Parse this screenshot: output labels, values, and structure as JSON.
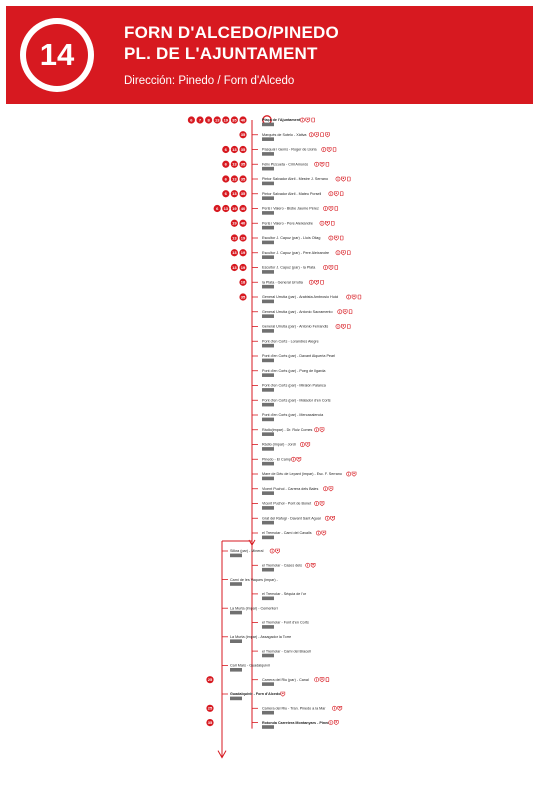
{
  "header": {
    "route_number": "14",
    "title_line1": "FORN D'ALCEDO/PINEDO",
    "title_line2": "PL. DE L'AJUNTAMENT",
    "direction": "Dirección: Pinedo / Forn d'Alcedo"
  },
  "colors": {
    "brand": "#d71920",
    "code_bg": "#707070"
  },
  "main_stops": [
    {
      "name": "Plaça de l'Ajuntament",
      "code": "",
      "bold": true,
      "lines": [
        "6",
        "7",
        "8",
        "13",
        "19",
        "35",
        "40"
      ],
      "icons": [
        "info",
        "metro",
        "bus"
      ]
    },
    {
      "name": "Marquès de Sotelo - Xàtiva",
      "code": "",
      "bold": false,
      "lines": [
        "35"
      ],
      "icons": [
        "info",
        "metro",
        "bus",
        "metro"
      ]
    },
    {
      "name": "Pasqual i Genís - Roger de Llúria",
      "code": "",
      "bold": false,
      "lines": [
        "6",
        "13",
        "35"
      ],
      "icons": [
        "info",
        "metro",
        "bus"
      ]
    },
    {
      "name": "Fèlix Pizcueta - Ciril Amorós",
      "code": "",
      "bold": false,
      "lines": [
        "6",
        "13",
        "35"
      ],
      "icons": [
        "info",
        "metro",
        "bus"
      ]
    },
    {
      "name": "Pintor Salvador Abril - Mestre J. Serrano",
      "code": "",
      "bold": false,
      "lines": [
        "6",
        "13",
        "35"
      ],
      "icons": [
        "info",
        "metro",
        "bus"
      ]
    },
    {
      "name": "Pintor Salvador Abril - Mateu Porsell",
      "code": "",
      "bold": false,
      "lines": [
        "6",
        "13",
        "35"
      ],
      "icons": [
        "info",
        "metro",
        "bus"
      ]
    },
    {
      "name": "Peris i Valero - Bisbe Jaume Pérez",
      "code": "",
      "bold": false,
      "lines": [
        "6",
        "13",
        "19",
        "40"
      ],
      "icons": [
        "info",
        "metro",
        "bus"
      ]
    },
    {
      "name": "Peris i Valero - Pere Aleixandre",
      "code": "",
      "bold": false,
      "lines": [
        "19",
        "40"
      ],
      "icons": [
        "info",
        "metro",
        "bus"
      ]
    },
    {
      "name": "Escultor J. Capuz (par) - Lluís Oliag",
      "code": "",
      "bold": false,
      "lines": [
        "13",
        "19"
      ],
      "icons": [
        "info",
        "metro",
        "bus"
      ]
    },
    {
      "name": "Escultor J. Capuz (par) - Pere Aleixandre",
      "code": "",
      "bold": false,
      "lines": [
        "13",
        "19"
      ],
      "icons": [
        "info",
        "metro",
        "bus"
      ]
    },
    {
      "name": "Escultor J. Capuz (par) - la Plata",
      "code": "",
      "bold": false,
      "lines": [
        "13",
        "19"
      ],
      "icons": [
        "info",
        "metro",
        "bus"
      ]
    },
    {
      "name": "la Plata - General Urrutia",
      "code": "",
      "bold": false,
      "lines": [
        "18"
      ],
      "icons": [
        "info",
        "metro",
        "bus"
      ]
    },
    {
      "name": "General Urrutia (par) - Arabista Ambrosio Huici",
      "code": "",
      "bold": false,
      "lines": [
        "35"
      ],
      "icons": [
        "info",
        "metro",
        "bus"
      ]
    },
    {
      "name": "General Urrutia (par) - Antonio Sacramento",
      "code": "",
      "bold": false,
      "lines": [],
      "icons": [
        "info",
        "metro",
        "bus"
      ]
    },
    {
      "name": "General Urrutia (par) - Antonio Ferrandis",
      "code": "",
      "bold": false,
      "lines": [],
      "icons": [
        "info",
        "metro",
        "bus"
      ]
    },
    {
      "name": "Pont d'en Corts - Lorandres Alegre",
      "code": "",
      "bold": false,
      "lines": [],
      "icons": []
    },
    {
      "name": "Pont d'en Corts (par) - Davant Alqueria Pearl",
      "code": "",
      "bold": false,
      "lines": [],
      "icons": []
    },
    {
      "name": "Pont d'en Corts (par) - Poeg de Ilgarda",
      "code": "",
      "bold": false,
      "lines": [],
      "icons": []
    },
    {
      "name": "Pont d'en Corts (par) - Miralón Palanca",
      "code": "",
      "bold": false,
      "lines": [],
      "icons": []
    },
    {
      "name": "Pont d'en Corts (par) - Matador d'en Corts",
      "code": "",
      "bold": false,
      "lines": [],
      "icons": []
    },
    {
      "name": "Pont d'en Corts (par) - Mercaxalencia",
      "code": "",
      "bold": false,
      "lines": [],
      "icons": []
    },
    {
      "name": "Ràdio(impar) - Dr. Ruiz Comes",
      "code": "",
      "bold": false,
      "lines": [],
      "icons": [
        "info",
        "metro"
      ]
    },
    {
      "name": "Ràdio (impar) - Jordi",
      "code": "",
      "bold": false,
      "lines": [],
      "icons": [
        "info",
        "metro"
      ]
    },
    {
      "name": "Pinedo - El Camp",
      "code": "",
      "bold": false,
      "lines": [],
      "icons": [
        "info",
        "metro"
      ]
    },
    {
      "name": "Mare de Déu de Lepant (impar) - Esc. F. Serrano",
      "code": "",
      "bold": false,
      "lines": [],
      "icons": [
        "info",
        "metro"
      ]
    },
    {
      "name": "Vicent Puchol - Carrera dels Bales",
      "code": "",
      "bold": false,
      "lines": [],
      "icons": [
        "info",
        "metro"
      ]
    },
    {
      "name": "Vicent Puchol - Pont de Bonet",
      "code": "",
      "bold": false,
      "lines": [],
      "icons": [
        "info",
        "metro"
      ]
    },
    {
      "name": "Grat del Rafugi - Davant Sant Aguai",
      "code": "",
      "bold": false,
      "lines": [],
      "icons": [
        "info",
        "metro"
      ]
    },
    {
      "name": "el Tremolar - Camí del Cavalls",
      "code": "",
      "bold": false,
      "lines": [],
      "icons": [
        "info",
        "metro"
      ]
    }
  ],
  "branch_stops": [
    {
      "side": "left",
      "name": "Silkra (par) - Mineral",
      "code": "",
      "bold": false,
      "icons": [
        "info",
        "metro"
      ]
    },
    {
      "side": "right",
      "name": "el Tremolar - Cases dels",
      "code": "",
      "bold": false,
      "icons": [
        "info",
        "metro"
      ]
    },
    {
      "side": "left",
      "name": "Camí de les Vaques (impar) -",
      "code": "",
      "bold": false,
      "icons": []
    },
    {
      "side": "right",
      "name": "el Tremolar - Séquia de l'or",
      "code": "",
      "bold": false,
      "icons": []
    },
    {
      "side": "left",
      "name": "La Murta (impar) - Cementeri",
      "code": "",
      "bold": false,
      "icons": []
    },
    {
      "side": "right",
      "name": "el Tremolar - Font d'en Corts",
      "code": "",
      "bold": false,
      "icons": []
    },
    {
      "side": "left",
      "name": "La Murta (impar) - Assagador la Torre",
      "code": "",
      "bold": false,
      "icons": []
    },
    {
      "side": "right",
      "name": "el Tremolar - Camí del Bracell",
      "code": "",
      "bold": false,
      "icons": []
    },
    {
      "side": "left",
      "name": "Carl Mars - Guadalquivir",
      "code": "",
      "bold": false,
      "icons": []
    },
    {
      "side": "right",
      "name": "Carrera del Riu (par) - Canal",
      "code": "",
      "bold": false,
      "icons": [
        "info",
        "metro",
        "bus"
      ],
      "lines": [
        "25"
      ]
    },
    {
      "side": "left",
      "name": "Guadalquivir - Forn d'Alcedo",
      "code": "",
      "bold": true,
      "icons": [
        "metro"
      ]
    },
    {
      "side": "right",
      "name": "Carrera del Riu - Tran. Pinedo a la Mar",
      "code": "",
      "bold": false,
      "icons": [
        "info",
        "metro"
      ],
      "lines": [
        "25"
      ]
    },
    {
      "side": "right",
      "name": "Rotonda Carretera Montanyars - Pinedo",
      "code": "",
      "bold": true,
      "icons": [
        "info",
        "metro"
      ],
      "lines": [
        "35"
      ]
    }
  ]
}
